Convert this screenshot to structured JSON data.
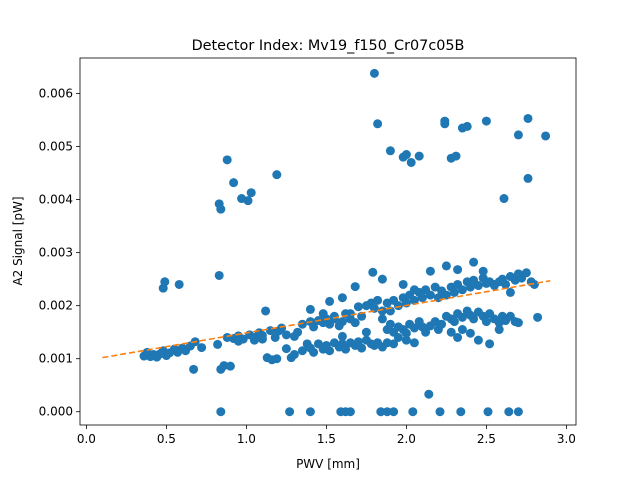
{
  "chart_data": {
    "type": "scatter",
    "title": "Detector Index: Mv19_f150_Cr07c05B",
    "xlabel": "PWV [mm]",
    "ylabel": "A2 Signal [pW]",
    "xlim": [
      -0.04,
      3.06
    ],
    "ylim": [
      -0.00025,
      0.00667
    ],
    "x_ticks": [
      0.0,
      0.5,
      1.0,
      1.5,
      2.0,
      2.5,
      3.0
    ],
    "x_tick_labels": [
      "0.0",
      "0.5",
      "1.0",
      "1.5",
      "2.0",
      "2.5",
      "3.0"
    ],
    "y_ticks": [
      0.0,
      0.001,
      0.002,
      0.003,
      0.004,
      0.005,
      0.006
    ],
    "y_tick_labels": [
      "0.000",
      "0.001",
      "0.002",
      "0.003",
      "0.004",
      "0.005",
      "0.006"
    ],
    "grid": false,
    "legend": "none",
    "colors": {
      "points": "#1f77b4",
      "fit_line": "#ff7f0e"
    },
    "fit_line": {
      "style": "dashed",
      "x": [
        0.1,
        2.9
      ],
      "y": [
        0.00102,
        0.00247
      ]
    },
    "series": [
      {
        "points": [
          [
            0.36,
            0.00105
          ],
          [
            0.38,
            0.00112
          ],
          [
            0.4,
            0.00104
          ],
          [
            0.42,
            0.00108
          ],
          [
            0.44,
            0.00103
          ],
          [
            0.46,
            0.00109
          ],
          [
            0.48,
            0.00115
          ],
          [
            0.5,
            0.00106
          ],
          [
            0.52,
            0.00111
          ],
          [
            0.55,
            0.00118
          ],
          [
            0.57,
            0.00112
          ],
          [
            0.6,
            0.0012
          ],
          [
            0.62,
            0.00115
          ],
          [
            0.65,
            0.00124
          ],
          [
            0.68,
            0.00132
          ],
          [
            0.72,
            0.00121
          ],
          [
            0.48,
            0.00233
          ],
          [
            0.49,
            0.00245
          ],
          [
            0.58,
            0.0024
          ],
          [
            0.67,
            0.0008
          ],
          [
            0.82,
            0.00127
          ],
          [
            0.84,
            0.0008
          ],
          [
            0.86,
            0.00087
          ],
          [
            0.9,
            0.00086
          ],
          [
            0.88,
            0.0014
          ],
          [
            0.92,
            0.00138
          ],
          [
            0.95,
            0.00143
          ],
          [
            0.98,
            0.00137
          ],
          [
            1.02,
            0.00145
          ],
          [
            1.05,
            0.0014
          ],
          [
            1.08,
            0.00149
          ],
          [
            1.1,
            0.00144
          ],
          [
            1.12,
            0.0019
          ],
          [
            1.15,
            0.00153
          ],
          [
            1.18,
            0.0014
          ],
          [
            1.2,
            0.00152
          ],
          [
            1.22,
            0.00158
          ],
          [
            1.25,
            0.00119
          ],
          [
            1.28,
            0.00102
          ],
          [
            1.3,
            0.00108
          ],
          [
            1.13,
            0.00102
          ],
          [
            1.16,
            0.00098
          ],
          [
            1.19,
            0.001
          ],
          [
            1.32,
            0.0015
          ],
          [
            1.35,
            0.00165
          ],
          [
            1.38,
            0.00128
          ],
          [
            1.4,
            0.0017
          ],
          [
            1.42,
            0.0016
          ],
          [
            1.45,
            0.00172
          ],
          [
            1.48,
            0.00168
          ],
          [
            1.5,
            0.00175
          ],
          [
            1.52,
            0.00165
          ],
          [
            1.55,
            0.0018
          ],
          [
            1.58,
            0.00162
          ],
          [
            1.6,
            0.0017
          ],
          [
            1.62,
            0.00185
          ],
          [
            1.65,
            0.00175
          ],
          [
            1.68,
            0.00168
          ],
          [
            1.7,
            0.00198
          ],
          [
            1.72,
            0.0018
          ],
          [
            1.35,
            0.00115
          ],
          [
            1.4,
            0.0012
          ],
          [
            1.42,
            0.00112
          ],
          [
            1.45,
            0.00128
          ],
          [
            1.48,
            0.00118
          ],
          [
            1.5,
            0.00125
          ],
          [
            1.52,
            0.00115
          ],
          [
            1.55,
            0.0013
          ],
          [
            1.58,
            0.00122
          ],
          [
            1.6,
            0.00128
          ],
          [
            1.62,
            0.00118
          ],
          [
            1.65,
            0.0013
          ],
          [
            1.68,
            0.00125
          ],
          [
            1.7,
            0.00132
          ],
          [
            1.72,
            0.0012
          ],
          [
            1.75,
            0.00135
          ],
          [
            1.78,
            0.00128
          ],
          [
            1.8,
            0.00125
          ],
          [
            1.82,
            0.0013
          ],
          [
            1.85,
            0.00122
          ],
          [
            1.4,
            0.00193
          ],
          [
            1.48,
            0.00185
          ],
          [
            1.52,
            0.00208
          ],
          [
            1.55,
            0.00175
          ],
          [
            1.6,
            0.00215
          ],
          [
            1.65,
            0.00185
          ],
          [
            1.68,
            0.00236
          ],
          [
            1.75,
            0.002
          ],
          [
            1.78,
            0.00205
          ],
          [
            1.8,
            0.00195
          ],
          [
            1.82,
            0.0021
          ],
          [
            1.85,
            0.0019
          ],
          [
            1.88,
            0.00205
          ],
          [
            1.9,
            0.0019
          ],
          [
            1.92,
            0.0021
          ],
          [
            1.95,
            0.002
          ],
          [
            1.98,
            0.00215
          ],
          [
            2.0,
            0.00205
          ],
          [
            2.02,
            0.0022
          ],
          [
            2.05,
            0.0021
          ],
          [
            1.88,
            0.00155
          ],
          [
            1.9,
            0.00165
          ],
          [
            1.92,
            0.0015
          ],
          [
            1.95,
            0.0016
          ],
          [
            1.98,
            0.00155
          ],
          [
            2.0,
            0.00148
          ],
          [
            2.02,
            0.00165
          ],
          [
            2.05,
            0.00158
          ],
          [
            2.08,
            0.0017
          ],
          [
            2.1,
            0.0016
          ],
          [
            2.12,
            0.0015
          ],
          [
            2.15,
            0.00162
          ],
          [
            2.18,
            0.0017
          ],
          [
            2.2,
            0.00155
          ],
          [
            2.22,
            0.00165
          ],
          [
            1.88,
            0.0013
          ],
          [
            1.92,
            0.00128
          ],
          [
            1.95,
            0.0014
          ],
          [
            2.0,
            0.00135
          ],
          [
            2.05,
            0.0013
          ],
          [
            2.08,
            0.00225
          ],
          [
            2.1,
            0.00215
          ],
          [
            2.12,
            0.0023
          ],
          [
            2.15,
            0.0022
          ],
          [
            2.18,
            0.00235
          ],
          [
            2.2,
            0.00215
          ],
          [
            2.22,
            0.00228
          ],
          [
            2.25,
            0.0022
          ],
          [
            2.28,
            0.00235
          ],
          [
            2.3,
            0.00225
          ],
          [
            2.32,
            0.0024
          ],
          [
            2.35,
            0.0023
          ],
          [
            2.38,
            0.00245
          ],
          [
            2.4,
            0.00235
          ],
          [
            2.42,
            0.00248
          ],
          [
            2.45,
            0.00238
          ],
          [
            2.48,
            0.00252
          ],
          [
            2.5,
            0.00242
          ],
          [
            2.52,
            0.00245
          ],
          [
            2.55,
            0.0024
          ],
          [
            2.25,
            0.0018
          ],
          [
            2.28,
            0.00175
          ],
          [
            2.3,
            0.0017
          ],
          [
            2.32,
            0.00185
          ],
          [
            2.35,
            0.00178
          ],
          [
            2.38,
            0.0019
          ],
          [
            2.4,
            0.00182
          ],
          [
            2.42,
            0.00175
          ],
          [
            2.45,
            0.00188
          ],
          [
            2.48,
            0.0018
          ],
          [
            2.5,
            0.0017
          ],
          [
            2.52,
            0.00185
          ],
          [
            2.55,
            0.00175
          ],
          [
            2.58,
            0.00168
          ],
          [
            2.6,
            0.0018
          ],
          [
            2.62,
            0.00172
          ],
          [
            2.65,
            0.0018
          ],
          [
            2.68,
            0.0017
          ],
          [
            2.7,
            0.00168
          ],
          [
            2.58,
            0.00155
          ],
          [
            2.28,
            0.0015
          ],
          [
            2.32,
            0.0014
          ],
          [
            2.35,
            0.00155
          ],
          [
            2.4,
            0.00148
          ],
          [
            2.45,
            0.00135
          ],
          [
            2.52,
            0.00128
          ],
          [
            2.58,
            0.00245
          ],
          [
            2.6,
            0.0025
          ],
          [
            2.62,
            0.0024
          ],
          [
            2.65,
            0.00255
          ],
          [
            2.68,
            0.00248
          ],
          [
            2.7,
            0.0026
          ],
          [
            2.72,
            0.00252
          ],
          [
            2.75,
            0.00262
          ],
          [
            2.78,
            0.00245
          ],
          [
            2.8,
            0.0024
          ],
          [
            2.82,
            0.00178
          ],
          [
            2.15,
            0.00265
          ],
          [
            2.25,
            0.00275
          ],
          [
            2.32,
            0.00268
          ],
          [
            1.8,
            0.00638
          ],
          [
            1.82,
            0.00543
          ],
          [
            2.24,
            0.00543
          ],
          [
            2.24,
            0.00548
          ],
          [
            2.35,
            0.00535
          ],
          [
            2.38,
            0.00538
          ],
          [
            2.5,
            0.00548
          ],
          [
            2.7,
            0.00522
          ],
          [
            2.76,
            0.00553
          ],
          [
            2.87,
            0.0052
          ],
          [
            1.9,
            0.00492
          ],
          [
            1.98,
            0.0048
          ],
          [
            2.0,
            0.00485
          ],
          [
            2.03,
            0.0047
          ],
          [
            2.08,
            0.00482
          ],
          [
            2.28,
            0.00478
          ],
          [
            2.31,
            0.00482
          ],
          [
            2.61,
            0.00402
          ],
          [
            2.76,
            0.0044
          ],
          [
            0.88,
            0.00475
          ],
          [
            0.92,
            0.00432
          ],
          [
            0.97,
            0.00402
          ],
          [
            1.01,
            0.00398
          ],
          [
            1.03,
            0.00413
          ],
          [
            1.19,
            0.00447
          ],
          [
            0.83,
            0.00392
          ],
          [
            0.84,
            0.00382
          ],
          [
            0.83,
            0.00257
          ],
          [
            2.14,
            0.00033
          ],
          [
            0.84,
            0.0
          ],
          [
            1.27,
            0.0
          ],
          [
            1.4,
            0.0
          ],
          [
            1.59,
            0.0
          ],
          [
            1.62,
            0.0
          ],
          [
            1.65,
            0.0
          ],
          [
            1.84,
            0.0
          ],
          [
            1.88,
            0.0
          ],
          [
            1.92,
            0.0
          ],
          [
            2.04,
            0.0
          ],
          [
            2.21,
            0.0
          ],
          [
            2.34,
            0.0
          ],
          [
            2.51,
            0.0
          ],
          [
            2.64,
            0.0
          ],
          [
            2.7,
            0.0
          ],
          [
            1.79,
            0.00263
          ],
          [
            1.85,
            0.0025
          ],
          [
            1.98,
            0.0024
          ],
          [
            2.05,
            0.0023
          ],
          [
            1.1,
            0.00137
          ],
          [
            1.25,
            0.00145
          ],
          [
            0.95,
            0.00133
          ],
          [
            1.05,
            0.00135
          ],
          [
            1.3,
            0.00142
          ],
          [
            1.6,
            0.00142
          ],
          [
            1.75,
            0.0015
          ],
          [
            1.85,
            0.00175
          ],
          [
            2.42,
            0.00282
          ],
          [
            2.48,
            0.00265
          ],
          [
            2.55,
            0.00238
          ],
          [
            2.65,
            0.00225
          ]
        ]
      }
    ]
  }
}
